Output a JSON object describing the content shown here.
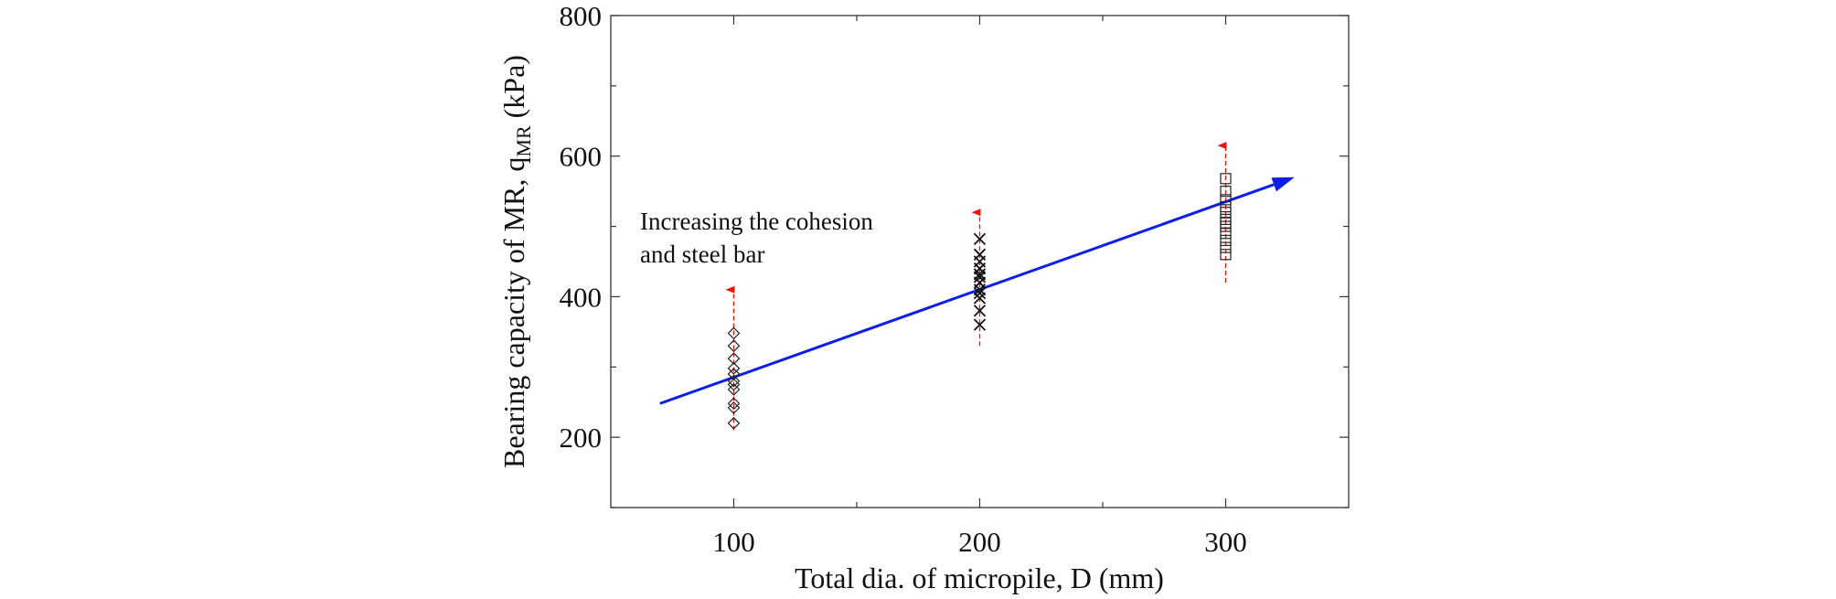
{
  "chart_data": {
    "type": "scatter",
    "xlabel": "Total dia. of micropile, D (mm)",
    "ylabel": {
      "prefix": "Bearing capacity of MR, q",
      "subscript": "MR",
      "suffix": " (kPa)"
    },
    "xlim": [
      50,
      350
    ],
    "ylim": [
      100,
      800
    ],
    "x_ticks": [
      "100",
      "200",
      "300"
    ],
    "y_ticks": [
      "200",
      "400",
      "600",
      "800"
    ],
    "grid": false,
    "series": [
      {
        "marker": "diamond",
        "x": 100,
        "values": [
          220,
          242,
          248,
          268,
          275,
          280,
          290,
          298,
          312,
          330,
          348
        ]
      },
      {
        "marker": "x",
        "x": 200,
        "values": [
          360,
          380,
          398,
          405,
          410,
          420,
          428,
          432,
          440,
          450,
          460,
          482
        ]
      },
      {
        "marker": "square",
        "x": 300,
        "values": [
          460,
          470,
          480,
          490,
          500,
          505,
          510,
          520,
          528,
          538,
          550,
          568
        ]
      }
    ],
    "ranges": [
      {
        "x": 100,
        "from": 210,
        "to": 410
      },
      {
        "x": 200,
        "from": 330,
        "to": 520
      },
      {
        "x": 300,
        "from": 420,
        "to": 615
      }
    ],
    "trend": {
      "x": [
        70,
        328
      ],
      "y": [
        248,
        570
      ],
      "color": "#0d1ee8"
    },
    "range_color": "#e8150f",
    "annotation": [
      "Increasing the cohesion",
      "and steel bar"
    ]
  }
}
